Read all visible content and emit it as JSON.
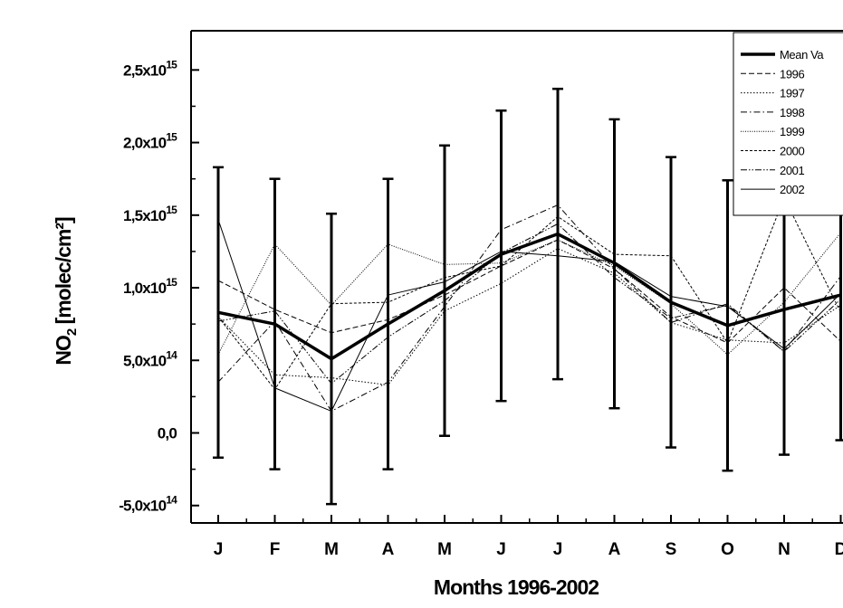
{
  "chart_data": {
    "type": "line",
    "xlabel": "Months 1996-2002",
    "ylabel": "NO",
    "ylabel_sub": "2",
    "ylabel_units": " [molec/cm²]",
    "categories": [
      "J",
      "F",
      "M",
      "A",
      "M",
      "J",
      "J",
      "A",
      "S",
      "O",
      "N",
      "D"
    ],
    "ylim": [
      -620000000000000.0,
      2770000000000000.0
    ],
    "yticks": [
      {
        "value": 2500000000000000.0,
        "base": "2,5x10",
        "exp": "15"
      },
      {
        "value": 2000000000000000.0,
        "base": "2,0x10",
        "exp": "15"
      },
      {
        "value": 1500000000000000.0,
        "base": "1,5x10",
        "exp": "15"
      },
      {
        "value": 1000000000000000.0,
        "base": "1,0x10",
        "exp": "15"
      },
      {
        "value": 500000000000000.0,
        "base": "5,0x10",
        "exp": "14"
      },
      {
        "value": 0,
        "base": "0,0",
        "exp": ""
      },
      {
        "value": -500000000000000.0,
        "base": "-5,0x10",
        "exp": "14"
      }
    ],
    "series": [
      {
        "name": "Mean Va",
        "style": "mean",
        "values": [
          830000000000000.0,
          750000000000000.0,
          510000000000000.0,
          750000000000000.0,
          980000000000000.0,
          1230000000000000.0,
          1370000000000000.0,
          1170000000000000.0,
          900000000000000.0,
          740000000000000.0,
          850000000000000.0,
          950000000000000.0
        ],
        "error_low": [
          -170000000000000.0,
          -250000000000000.0,
          -490000000000000.0,
          -250000000000000.0,
          -20000000000000.0,
          220000000000000.0,
          370000000000000.0,
          170000000000000.0,
          -100000000000000.0,
          -260000000000000.0,
          -150000000000000.0,
          -50000000000000.0
        ],
        "error_high": [
          1830000000000000.0,
          1750000000000000.0,
          1510000000000000.0,
          1750000000000000.0,
          1980000000000000.0,
          2220000000000000.0,
          2370000000000000.0,
          2160000000000000.0,
          1900000000000000.0,
          1740000000000000.0,
          1850000000000000.0,
          1950000000000000.0
        ]
      },
      {
        "name": "1996",
        "style": "dash",
        "values": [
          1050000000000000.0,
          850000000000000.0,
          690000000000000.0,
          780000000000000.0,
          950000000000000.0,
          1150000000000000.0,
          1330000000000000.0,
          1130000000000000.0,
          800000000000000.0,
          620000000000000.0,
          1000000000000000.0,
          630000000000000.0
        ]
      },
      {
        "name": "1997",
        "style": "dot",
        "values": [
          800000000000000.0,
          400000000000000.0,
          380000000000000.0,
          330000000000000.0,
          840000000000000.0,
          1030000000000000.0,
          1270000000000000.0,
          1100000000000000.0,
          760000000000000.0,
          640000000000000.0,
          620000000000000.0,
          880000000000000.0
        ]
      },
      {
        "name": "1998",
        "style": "dashdot",
        "values": [
          350000000000000.0,
          770000000000000.0,
          150000000000000.0,
          350000000000000.0,
          870000000000000.0,
          1400000000000000.0,
          1570000000000000.0,
          1130000000000000.0,
          760000000000000.0,
          890000000000000.0,
          560000000000000.0,
          1080000000000000.0
        ]
      },
      {
        "name": "1999",
        "style": "shortdot",
        "values": [
          540000000000000.0,
          1300000000000000.0,
          880000000000000.0,
          1300000000000000.0,
          1160000000000000.0,
          1170000000000000.0,
          1330000000000000.0,
          1150000000000000.0,
          890000000000000.0,
          540000000000000.0,
          900000000000000.0,
          1380000000000000.0
        ]
      },
      {
        "name": "2000",
        "style": "shortdash",
        "values": [
          800000000000000.0,
          300000000000000.0,
          890000000000000.0,
          900000000000000.0,
          1070000000000000.0,
          1150000000000000.0,
          1490000000000000.0,
          1230000000000000.0,
          1220000000000000.0,
          620000000000000.0,
          1620000000000000.0,
          830000000000000.0
        ]
      },
      {
        "name": "2001",
        "style": "dashdotdot",
        "values": [
          770000000000000.0,
          840000000000000.0,
          340000000000000.0,
          660000000000000.0,
          910000000000000.0,
          1240000000000000.0,
          1440000000000000.0,
          1070000000000000.0,
          790000000000000.0,
          880000000000000.0,
          560000000000000.0,
          920000000000000.0
        ]
      },
      {
        "name": "2002",
        "style": "solid",
        "values": [
          1470000000000000.0,
          310000000000000.0,
          150000000000000.0,
          950000000000000.0,
          1040000000000000.0,
          1250000000000000.0,
          1220000000000000.0,
          1180000000000000.0,
          940000000000000.0,
          870000000000000.0,
          580000000000000.0,
          960000000000000.0
        ]
      }
    ],
    "legend_placement": "top-right",
    "grid": false
  }
}
